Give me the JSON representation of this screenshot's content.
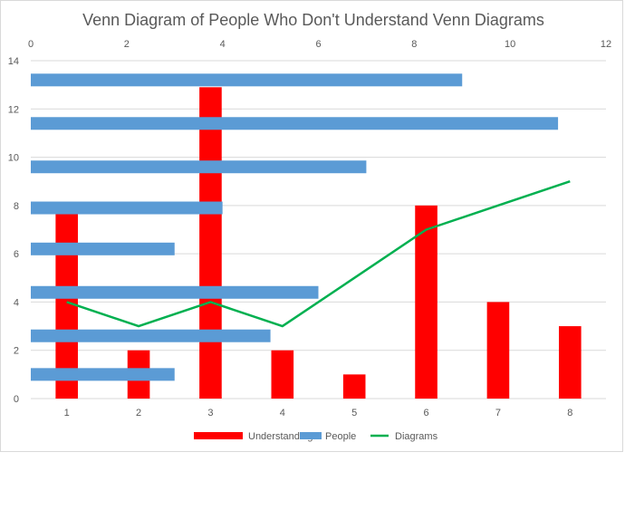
{
  "chart_data": {
    "type": "bar",
    "title": "Venn Diagram of People Who Don't Understand Venn Diagrams",
    "colors": {
      "Understanding": "#ff0000",
      "People": "#5b9bd5",
      "Diagrams": "#00b050"
    },
    "primary_x": {
      "categories": [
        "1",
        "2",
        "3",
        "4",
        "5",
        "6",
        "7",
        "8"
      ]
    },
    "primary_y": {
      "ticks": [
        "0",
        "2",
        "4",
        "6",
        "8",
        "10",
        "12",
        "14"
      ],
      "ylim": [
        0,
        14
      ]
    },
    "secondary_x": {
      "ticks": [
        "0",
        "2",
        "4",
        "6",
        "8",
        "10",
        "12"
      ],
      "xlim": [
        0,
        12
      ]
    },
    "series": [
      {
        "name": "Understanding",
        "type": "column",
        "values": [
          7.7,
          2,
          12.9,
          2,
          1,
          8,
          4,
          3
        ]
      },
      {
        "name": "People",
        "type": "horizontal-bar",
        "y": [
          1,
          2.6,
          4.4,
          6.2,
          7.9,
          9.6,
          11.4,
          13.2
        ],
        "values": [
          3,
          5,
          6,
          3,
          4,
          7,
          11,
          9
        ]
      },
      {
        "name": "Diagrams",
        "type": "line",
        "values": [
          4,
          3,
          4,
          3,
          5,
          7,
          8,
          9
        ]
      }
    ],
    "legend": {
      "position": "bottom",
      "entries": [
        "Understanding",
        "People",
        "Diagrams"
      ]
    },
    "grid": true
  }
}
